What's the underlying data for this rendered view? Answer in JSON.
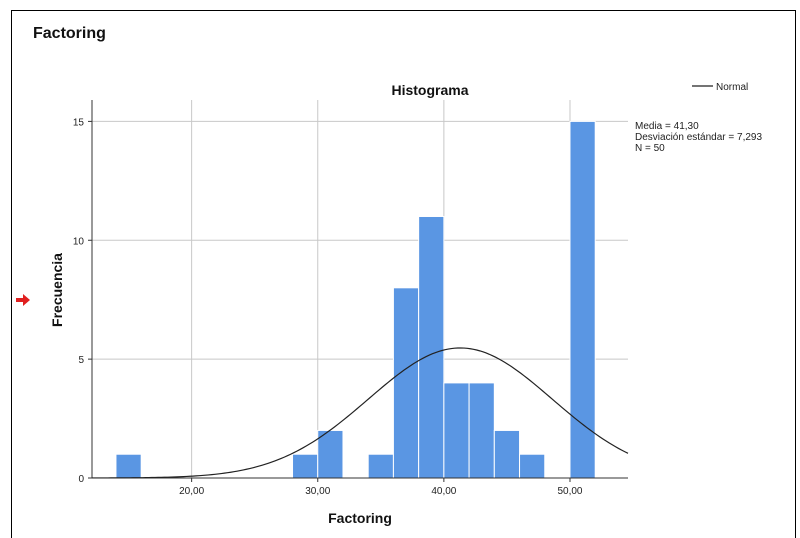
{
  "page": {
    "heading": "Factoring"
  },
  "chart_data": {
    "type": "bar",
    "title": "Histograma",
    "xlabel": "Factoring",
    "ylabel": "Frecuencia",
    "xlim": [
      12.1,
      54.6
    ],
    "ylim": [
      0,
      15.9
    ],
    "xticks": [
      20,
      30,
      40,
      50
    ],
    "xtick_labels": [
      "20,00",
      "30,00",
      "40,00",
      "50,00"
    ],
    "yticks": [
      0,
      5,
      10,
      15
    ],
    "ytick_labels": [
      "0",
      "5",
      "10",
      "15"
    ],
    "grid": true,
    "bar_color": "#5a96e3",
    "bins": [
      {
        "from": 14,
        "to": 16,
        "count": 1
      },
      {
        "from": 28,
        "to": 30,
        "count": 1
      },
      {
        "from": 30,
        "to": 32,
        "count": 2
      },
      {
        "from": 34,
        "to": 36,
        "count": 1
      },
      {
        "from": 36,
        "to": 38,
        "count": 8
      },
      {
        "from": 38,
        "to": 40,
        "count": 11
      },
      {
        "from": 40,
        "to": 42,
        "count": 4
      },
      {
        "from": 42,
        "to": 44,
        "count": 4
      },
      {
        "from": 44,
        "to": 46,
        "count": 2
      },
      {
        "from": 46,
        "to": 48,
        "count": 1
      },
      {
        "from": 50,
        "to": 52,
        "count": 15
      }
    ],
    "normal_curve": {
      "mean": 41.3,
      "sd": 7.293,
      "n": 50,
      "bin_width": 2,
      "color": "#222222"
    },
    "legend": {
      "entry": "Normal",
      "position": "top-right"
    },
    "stats": [
      "Media = 41,30",
      "Desviación estándar = 7,293",
      "N = 50"
    ]
  }
}
